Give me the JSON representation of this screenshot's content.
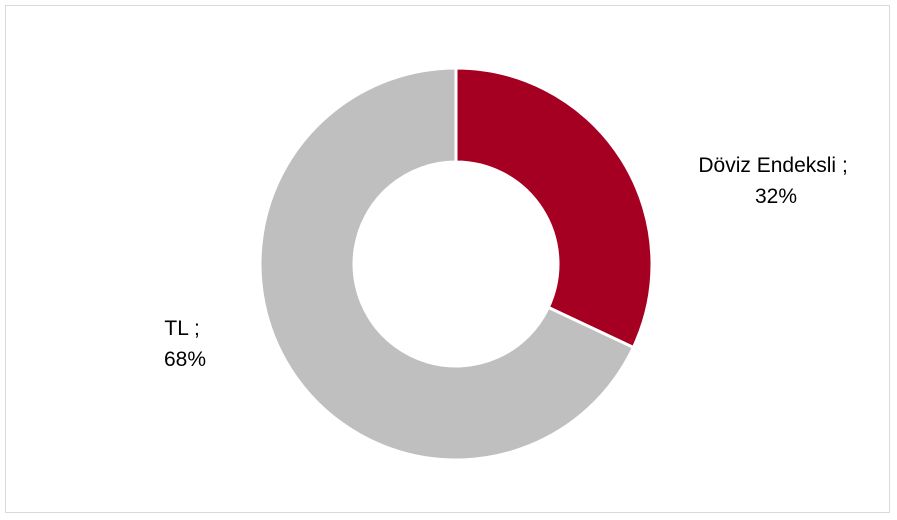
{
  "chart_data": {
    "type": "pie",
    "variant": "donut",
    "title": "",
    "separator": " ;",
    "slices": [
      {
        "label": "Döviz Endeksli",
        "value": 32,
        "value_label": "32%",
        "color": "#a50021"
      },
      {
        "label": "TL",
        "value": 68,
        "value_label": "68%",
        "color": "#bfbfbf"
      }
    ],
    "legend": "none",
    "start_angle": "12 o'clock",
    "direction": "clockwise"
  }
}
